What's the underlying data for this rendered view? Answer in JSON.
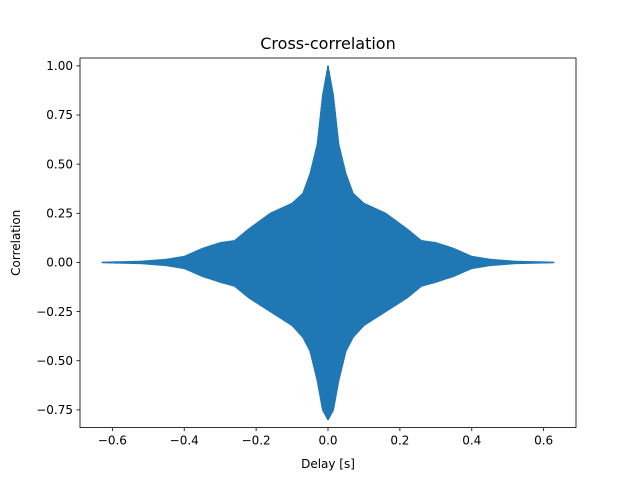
{
  "chart_data": {
    "type": "line",
    "title": "Cross-correlation",
    "xlabel": "Delay [s]",
    "ylabel": "Correlation",
    "xlim": [
      -0.69,
      0.69
    ],
    "ylim": [
      -0.84,
      1.04
    ],
    "xticks": [
      -0.6,
      -0.4,
      -0.2,
      0.0,
      0.2,
      0.4,
      0.6
    ],
    "xtick_labels": [
      "−0.6",
      "−0.4",
      "−0.2",
      "0.0",
      "0.2",
      "0.4",
      "0.6"
    ],
    "yticks": [
      -0.75,
      -0.5,
      -0.25,
      0.0,
      0.25,
      0.5,
      0.75,
      1.0
    ],
    "ytick_labels": [
      "−0.75",
      "−0.50",
      "−0.25",
      "0.00",
      "0.25",
      "0.50",
      "0.75",
      "1.00"
    ],
    "grid": false,
    "series": [
      {
        "color": "#1f77b4",
        "x_range": [
          -0.63,
          0.63
        ],
        "peak": {
          "x": 0.0,
          "y": 1.0
        },
        "trough": {
          "x": 0.0,
          "y": -0.8
        },
        "upper_envelope": [
          [
            -0.63,
            0.0
          ],
          [
            -0.52,
            0.005
          ],
          [
            -0.45,
            0.015
          ],
          [
            -0.4,
            0.03
          ],
          [
            -0.35,
            0.07
          ],
          [
            -0.3,
            0.1
          ],
          [
            -0.26,
            0.11
          ],
          [
            -0.22,
            0.17
          ],
          [
            -0.16,
            0.25
          ],
          [
            -0.1,
            0.3
          ],
          [
            -0.07,
            0.35
          ],
          [
            -0.05,
            0.45
          ],
          [
            -0.03,
            0.6
          ],
          [
            -0.015,
            0.85
          ],
          [
            0.0,
            1.0
          ],
          [
            0.015,
            0.85
          ],
          [
            0.03,
            0.6
          ],
          [
            0.05,
            0.45
          ],
          [
            0.07,
            0.35
          ],
          [
            0.1,
            0.3
          ],
          [
            0.16,
            0.25
          ],
          [
            0.22,
            0.17
          ],
          [
            0.26,
            0.11
          ],
          [
            0.3,
            0.1
          ],
          [
            0.35,
            0.07
          ],
          [
            0.4,
            0.03
          ],
          [
            0.45,
            0.015
          ],
          [
            0.52,
            0.005
          ],
          [
            0.63,
            0.0
          ]
        ],
        "lower_envelope": [
          [
            -0.63,
            0.0
          ],
          [
            -0.52,
            -0.005
          ],
          [
            -0.45,
            -0.015
          ],
          [
            -0.4,
            -0.03
          ],
          [
            -0.35,
            -0.07
          ],
          [
            -0.3,
            -0.1
          ],
          [
            -0.26,
            -0.12
          ],
          [
            -0.22,
            -0.18
          ],
          [
            -0.16,
            -0.25
          ],
          [
            -0.1,
            -0.32
          ],
          [
            -0.07,
            -0.38
          ],
          [
            -0.05,
            -0.45
          ],
          [
            -0.03,
            -0.6
          ],
          [
            -0.015,
            -0.75
          ],
          [
            0.0,
            -0.8
          ],
          [
            0.015,
            -0.75
          ],
          [
            0.03,
            -0.6
          ],
          [
            0.05,
            -0.45
          ],
          [
            0.07,
            -0.38
          ],
          [
            0.1,
            -0.32
          ],
          [
            0.16,
            -0.25
          ],
          [
            0.22,
            -0.18
          ],
          [
            0.26,
            -0.12
          ],
          [
            0.3,
            -0.1
          ],
          [
            0.35,
            -0.07
          ],
          [
            0.4,
            -0.03
          ],
          [
            0.45,
            -0.015
          ],
          [
            0.52,
            -0.005
          ],
          [
            0.63,
            0.0
          ]
        ]
      }
    ]
  }
}
